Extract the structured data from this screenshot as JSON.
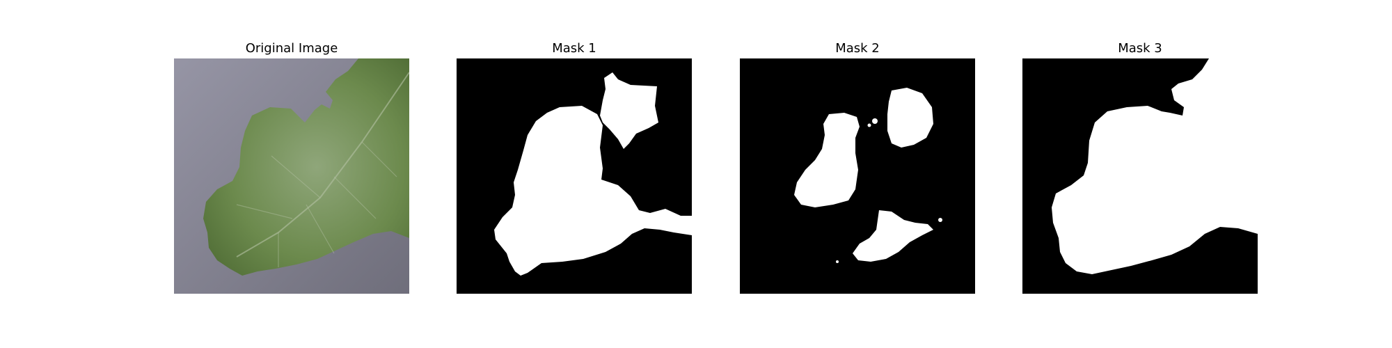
{
  "figure": {
    "panels": [
      {
        "title": "Original Image",
        "kind": "photo",
        "subject": "leaf-photo"
      },
      {
        "title": "Mask 1",
        "kind": "mask"
      },
      {
        "title": "Mask 2",
        "kind": "mask"
      },
      {
        "title": "Mask 3",
        "kind": "mask"
      }
    ]
  },
  "colors": {
    "background_gray": "#8d8c99",
    "leaf_green": "#67844a",
    "leaf_highlight": "#a9b99a",
    "mask_black": "#000000",
    "mask_white": "#ffffff"
  }
}
